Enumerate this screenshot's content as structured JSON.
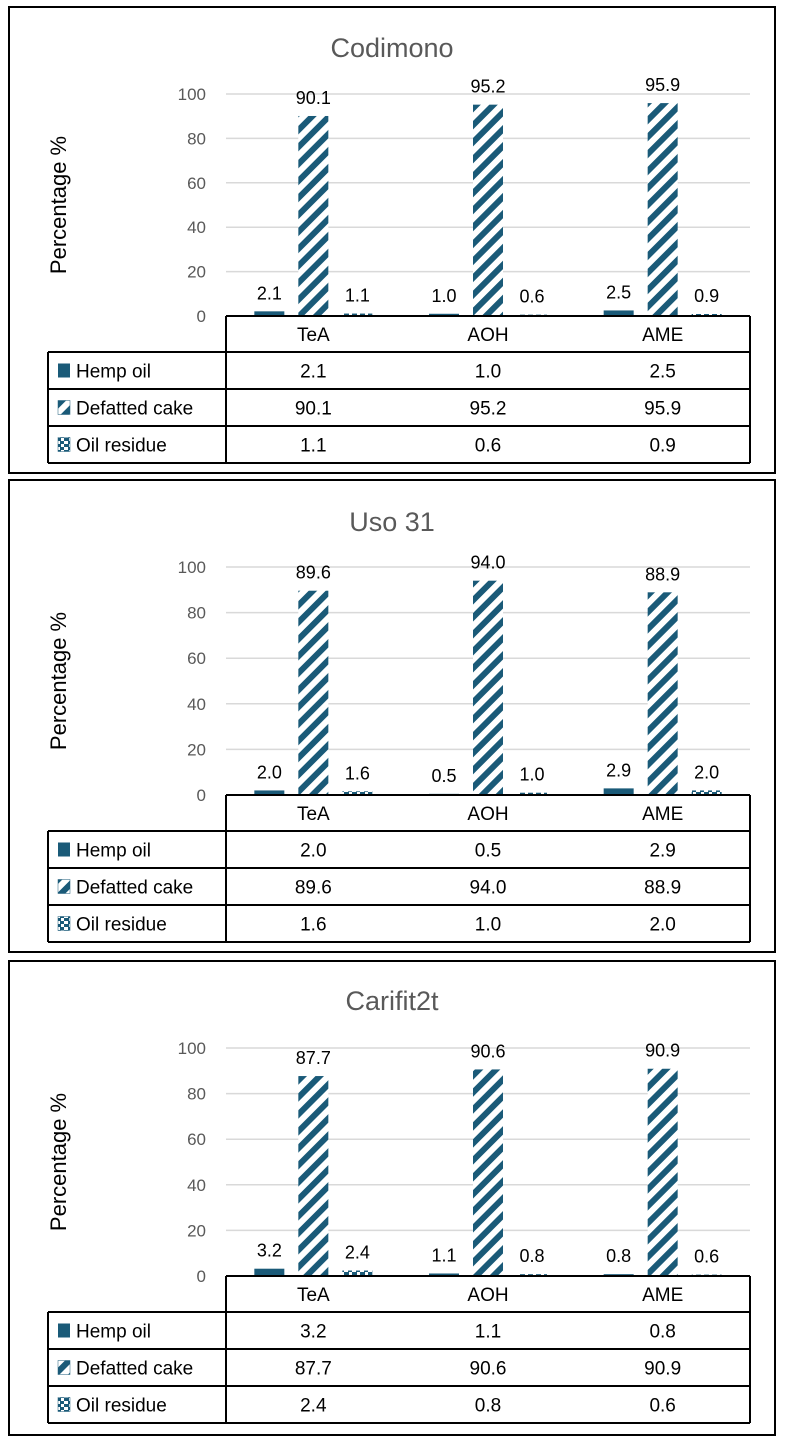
{
  "colors": {
    "series": "#1a5a78",
    "grid": "#d9d9d9",
    "border": "#000000"
  },
  "chart_data": [
    {
      "type": "bar",
      "title": "Codimono",
      "ylabel": "Percentage %",
      "ylim": [
        0,
        100
      ],
      "yticks": [
        0,
        20,
        40,
        60,
        80,
        100
      ],
      "categories": [
        "TeA",
        "AOH",
        "AME"
      ],
      "grid": true,
      "legend": "data-table",
      "series": [
        {
          "name": "Hemp oil",
          "values": [
            2.1,
            1.0,
            2.5
          ],
          "labels": [
            "2.1",
            "1.0",
            "2.5"
          ],
          "pattern": "solid"
        },
        {
          "name": "Defatted cake",
          "values": [
            90.1,
            95.2,
            95.9
          ],
          "labels": [
            "90.1",
            "95.2",
            "95.9"
          ],
          "pattern": "diagonal"
        },
        {
          "name": "Oil residue",
          "values": [
            1.1,
            0.6,
            0.9
          ],
          "labels": [
            "1.1",
            "0.6",
            "0.9"
          ],
          "pattern": "dashed"
        }
      ]
    },
    {
      "type": "bar",
      "title": "Uso 31",
      "ylabel": "Percentage %",
      "ylim": [
        0,
        100
      ],
      "yticks": [
        0,
        20,
        40,
        60,
        80,
        100
      ],
      "categories": [
        "TeA",
        "AOH",
        "AME"
      ],
      "grid": true,
      "legend": "data-table",
      "series": [
        {
          "name": "Hemp oil",
          "values": [
            2.0,
            0.5,
            2.9
          ],
          "labels": [
            "2.0",
            "0.5",
            "2.9"
          ],
          "pattern": "solid"
        },
        {
          "name": "Defatted cake",
          "values": [
            89.6,
            94.0,
            88.9
          ],
          "labels": [
            "89.6",
            "94.0",
            "88.9"
          ],
          "pattern": "diagonal"
        },
        {
          "name": "Oil residue",
          "values": [
            1.6,
            1.0,
            2.0
          ],
          "labels": [
            "1.6",
            "1.0",
            "2.0"
          ],
          "pattern": "dashed"
        }
      ]
    },
    {
      "type": "bar",
      "title": "Carifit2t",
      "ylabel": "Percentage %",
      "ylim": [
        0,
        100
      ],
      "yticks": [
        0,
        20,
        40,
        60,
        80,
        100
      ],
      "categories": [
        "TeA",
        "AOH",
        "AME"
      ],
      "grid": true,
      "legend": "data-table",
      "series": [
        {
          "name": "Hemp oil",
          "values": [
            3.2,
            1.1,
            0.8
          ],
          "labels": [
            "3.2",
            "1.1",
            "0.8"
          ],
          "pattern": "solid"
        },
        {
          "name": "Defatted cake",
          "values": [
            87.7,
            90.6,
            90.9
          ],
          "labels": [
            "87.7",
            "90.6",
            "90.9"
          ],
          "pattern": "diagonal"
        },
        {
          "name": "Oil residue",
          "values": [
            2.4,
            0.8,
            0.6
          ],
          "labels": [
            "2.4",
            "0.8",
            "0.6"
          ],
          "pattern": "dashed"
        }
      ]
    }
  ]
}
